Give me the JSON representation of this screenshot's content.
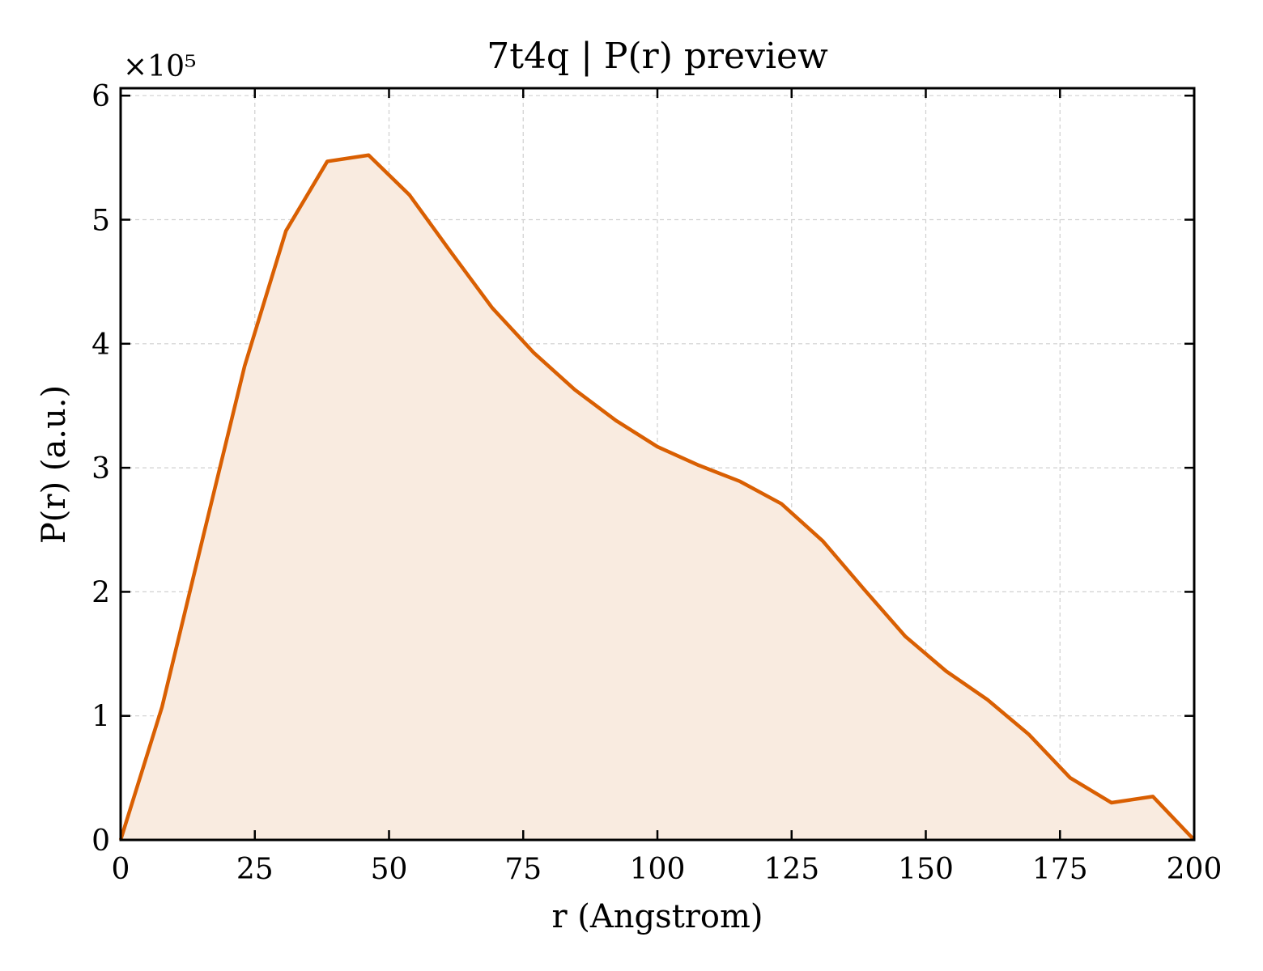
{
  "chart_data": {
    "type": "area",
    "title": "7t4q | P(r) preview",
    "xlabel": "r (Angstrom)",
    "ylabel": "P(r) (a.u.)",
    "y_offset_label": "×10⁵",
    "y_scale": 100000,
    "xlim": [
      0,
      200
    ],
    "ylim": [
      0,
      606000
    ],
    "xticks": [
      0,
      25,
      50,
      75,
      100,
      125,
      150,
      175,
      200
    ],
    "yticks": [
      0,
      1,
      2,
      3,
      4,
      5,
      6
    ],
    "grid": true,
    "line_color": "#d95f02",
    "fill_color": "#f9ebe0",
    "series": [
      {
        "x": [
          0,
          7.7,
          15.4,
          23.1,
          30.8,
          38.5,
          46.2,
          53.8,
          61.5,
          69.2,
          76.9,
          84.6,
          92.3,
          100,
          107.7,
          115.4,
          123.1,
          130.8,
          138.5,
          146.2,
          153.8,
          161.5,
          169.2,
          176.9,
          184.6,
          192.3,
          200
        ],
        "y": [
          0,
          107000,
          245000,
          382000,
          491000,
          547000,
          552000,
          520000,
          474000,
          429000,
          393000,
          363000,
          338000,
          317000,
          302000,
          289000,
          271000,
          241000,
          202000,
          164000,
          136000,
          113000,
          85000,
          50000,
          30000,
          35000,
          0
        ]
      }
    ]
  }
}
